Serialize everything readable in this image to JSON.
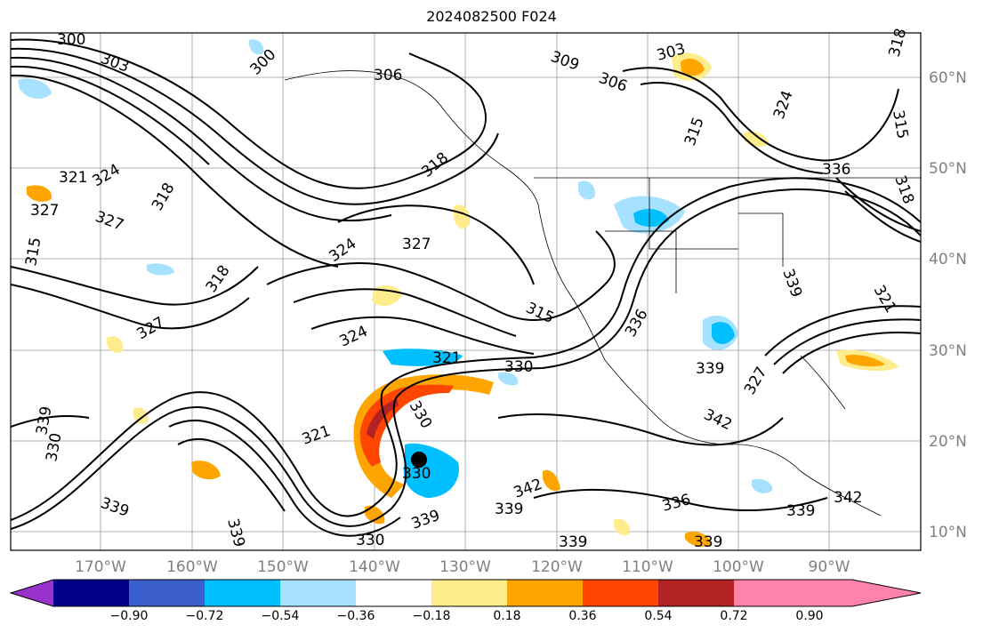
{
  "title": "2024082500 F024",
  "map": {
    "lon_labels": [
      "170°W",
      "160°W",
      "150°W",
      "140°W",
      "130°W",
      "120°W",
      "110°W",
      "100°W",
      "90°W"
    ],
    "lat_labels": [
      "60°N",
      "50°N",
      "40°N",
      "30°N",
      "20°N",
      "10°N"
    ],
    "contour_labels": [
      "300",
      "303",
      "306",
      "309",
      "315",
      "318",
      "321",
      "324",
      "327",
      "330",
      "336",
      "339",
      "342"
    ]
  },
  "colorbar": {
    "ticks": [
      "−0.90",
      "−0.72",
      "−0.54",
      "−0.36",
      "−0.18",
      "0.18",
      "0.36",
      "0.54",
      "0.72",
      "0.90"
    ],
    "colors": [
      "#9932cc",
      "#00008b",
      "#3a5fcd",
      "#00bfff",
      "#a6e1ff",
      "#ffffff",
      "#ffec8b",
      "#ffa500",
      "#ff4500",
      "#b22222",
      "#ff82ab"
    ]
  }
}
